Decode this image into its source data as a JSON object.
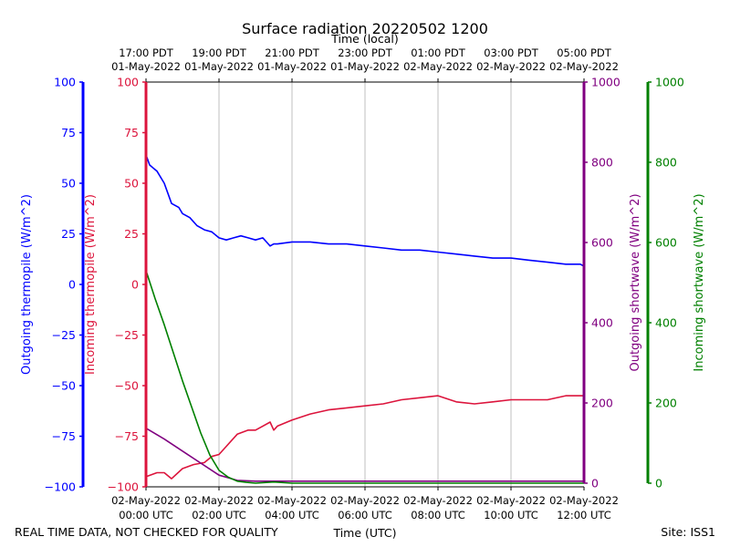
{
  "chart_data": {
    "type": "line",
    "title": "Surface radiation 20220502 1200",
    "xlabel_top": "Time (local)",
    "xlabel_bottom": "Time (UTC)",
    "footer_left": "REAL TIME DATA, NOT CHECKED FOR QUALITY",
    "footer_right": "Site: ISS1",
    "x_range_hours": [
      0,
      12
    ],
    "grid": "vertical",
    "bottom_ticks": [
      {
        "date": "02-May-2022",
        "time": "00:00 UTC"
      },
      {
        "date": "02-May-2022",
        "time": "02:00 UTC"
      },
      {
        "date": "02-May-2022",
        "time": "04:00 UTC"
      },
      {
        "date": "02-May-2022",
        "time": "06:00 UTC"
      },
      {
        "date": "02-May-2022",
        "time": "08:00 UTC"
      },
      {
        "date": "02-May-2022",
        "time": "10:00 UTC"
      },
      {
        "date": "02-May-2022",
        "time": "12:00 UTC"
      }
    ],
    "top_ticks": [
      {
        "time": "17:00 PDT",
        "date": "01-May-2022"
      },
      {
        "time": "19:00 PDT",
        "date": "01-May-2022"
      },
      {
        "time": "21:00 PDT",
        "date": "01-May-2022"
      },
      {
        "time": "23:00 PDT",
        "date": "01-May-2022"
      },
      {
        "time": "01:00 PDT",
        "date": "02-May-2022"
      },
      {
        "time": "03:00 PDT",
        "date": "02-May-2022"
      },
      {
        "time": "05:00 PDT",
        "date": "02-May-2022"
      }
    ],
    "axes": [
      {
        "id": "out_thermo",
        "label": "Outgoing thermopile (W/m^2)",
        "color": "#0000ff",
        "range": [
          -100,
          100
        ],
        "ticks": [
          "100",
          "75",
          "50",
          "25",
          "0",
          "−25",
          "−50",
          "−75",
          "−100"
        ]
      },
      {
        "id": "in_thermo",
        "label": "Incoming thermopile (W/m^2)",
        "color": "#dc143c",
        "range": [
          -100,
          100
        ],
        "ticks": [
          "100",
          "75",
          "50",
          "25",
          "0",
          "−25",
          "−50",
          "−75",
          "−100"
        ]
      },
      {
        "id": "out_sw",
        "label": "Outgoing shortwave (W/m^2)",
        "color": "#800080",
        "range": [
          0,
          1000
        ],
        "ticks": [
          "1000",
          "800",
          "600",
          "400",
          "200",
          "0"
        ]
      },
      {
        "id": "in_sw",
        "label": "Incoming shortwave (W/m^2)",
        "color": "#008000",
        "range": [
          0,
          1000
        ],
        "ticks": [
          "1000",
          "800",
          "600",
          "400",
          "200",
          "0"
        ]
      }
    ],
    "series": [
      {
        "name": "Outgoing thermopile",
        "axis": "out_thermo",
        "color": "#0000ff",
        "x": [
          0,
          0.1,
          0.3,
          0.5,
          0.7,
          0.9,
          1.0,
          1.2,
          1.4,
          1.6,
          1.8,
          2.0,
          2.2,
          2.4,
          2.6,
          2.8,
          3.0,
          3.2,
          3.4,
          3.5,
          3.6,
          4.0,
          4.5,
          5.0,
          5.5,
          6.0,
          6.5,
          7.0,
          7.5,
          8.0,
          8.5,
          9.0,
          9.5,
          10.0,
          10.5,
          11.0,
          11.5,
          11.9,
          12.0
        ],
        "y": [
          64,
          59,
          56,
          50,
          40,
          38,
          35,
          33,
          29,
          27,
          26,
          23,
          22,
          23,
          24,
          23,
          22,
          23,
          19,
          20,
          20,
          21,
          21,
          20,
          20,
          19,
          18,
          17,
          17,
          16,
          15,
          14,
          13,
          13,
          12,
          11,
          10,
          10,
          9
        ]
      },
      {
        "name": "Incoming thermopile",
        "axis": "in_thermo",
        "color": "#dc143c",
        "x": [
          0,
          0.3,
          0.5,
          0.7,
          1.0,
          1.3,
          1.6,
          1.8,
          2.0,
          2.2,
          2.5,
          2.8,
          3.0,
          3.2,
          3.4,
          3.5,
          3.6,
          4.0,
          4.5,
          5.0,
          5.5,
          6.0,
          6.5,
          7.0,
          7.5,
          8.0,
          8.5,
          9.0,
          9.5,
          10.0,
          10.5,
          11.0,
          11.5,
          12.0
        ],
        "y": [
          -95,
          -93,
          -93,
          -96,
          -91,
          -89,
          -88,
          -85,
          -84,
          -80,
          -74,
          -72,
          -72,
          -70,
          -68,
          -72,
          -70,
          -67,
          -64,
          -62,
          -61,
          -60,
          -59,
          -57,
          -56,
          -55,
          -58,
          -59,
          -58,
          -57,
          -57,
          -57,
          -55,
          -55
        ]
      },
      {
        "name": "Outgoing shortwave",
        "axis": "out_sw",
        "color": "#800080",
        "x": [
          0,
          0.5,
          1.0,
          1.5,
          2.0,
          2.5,
          3.0,
          3.5,
          4.0,
          6.0,
          8.0,
          10.0,
          12.0
        ],
        "y": [
          137,
          110,
          80,
          50,
          20,
          7,
          5,
          5,
          5,
          5,
          5,
          5,
          5
        ]
      },
      {
        "name": "Incoming shortwave",
        "axis": "in_sw",
        "color": "#008000",
        "x": [
          0,
          0.25,
          0.5,
          0.75,
          1.0,
          1.25,
          1.5,
          1.75,
          2.0,
          2.25,
          2.5,
          2.75,
          3.0,
          3.5,
          4.0,
          6.0,
          8.0,
          10.0,
          12.0
        ],
        "y": [
          530,
          460,
          395,
          325,
          255,
          190,
          125,
          70,
          32,
          15,
          5,
          2,
          0,
          3,
          0,
          0,
          0,
          0,
          0
        ]
      }
    ]
  }
}
